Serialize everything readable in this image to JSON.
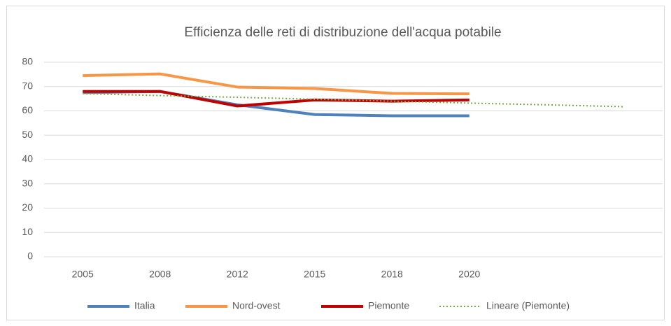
{
  "chart_data": {
    "type": "line",
    "title": "Efficienza delle reti di distribuzione dell'acqua potabile",
    "categories": [
      "2005",
      "2008",
      "2012",
      "2015",
      "2018",
      "2020",
      null,
      null
    ],
    "series": [
      {
        "name": "Italia",
        "color": "#4f81bd",
        "values": [
          67.5,
          68,
          62.5,
          58.5,
          58,
          58,
          null,
          null
        ]
      },
      {
        "name": "Nord-ovest",
        "color": "#f79646",
        "values": [
          74.5,
          75.2,
          69.8,
          69.2,
          67.2,
          67,
          null,
          null
        ]
      },
      {
        "name": "Piemonte",
        "color": "#c00000",
        "values": [
          68,
          68,
          62,
          64.5,
          64,
          64.5,
          null,
          null
        ]
      },
      {
        "name": "Lineare (Piemonte)",
        "color": "#70ad47",
        "dash": "dotted",
        "values": [
          67.1,
          66.3,
          65.6,
          64.8,
          64.0,
          63.2,
          62.5,
          61.7
        ]
      }
    ],
    "ylim": [
      0,
      80
    ],
    "yticks": [
      0,
      10,
      20,
      30,
      40,
      50,
      60,
      70,
      80
    ],
    "grid": true,
    "legend": "bottom"
  }
}
